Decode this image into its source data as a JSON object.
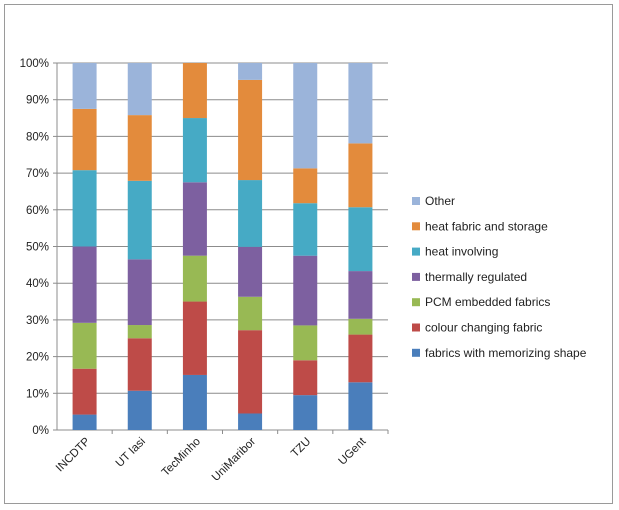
{
  "chart_data": {
    "type": "bar",
    "stacked": true,
    "percent": true,
    "title": "",
    "xlabel": "",
    "ylabel": "",
    "ylim": [
      0,
      100
    ],
    "y_ticks": [
      "0%",
      "10%",
      "20%",
      "30%",
      "40%",
      "50%",
      "60%",
      "70%",
      "80%",
      "90%",
      "100%"
    ],
    "grid": true,
    "legend_position": "right",
    "categories": [
      "INCDTP",
      "UT Iasi",
      "TecMinho",
      "UniMaribor",
      "TZU",
      "UGent"
    ],
    "series": [
      {
        "name": "fabrics with memorizing shape",
        "color": "#4a7ebb",
        "values": [
          4.2,
          10.7,
          15.0,
          4.5,
          9.5,
          13.0
        ]
      },
      {
        "name": "colour changing fabric",
        "color": "#be4b48",
        "values": [
          12.5,
          14.3,
          20.0,
          22.7,
          9.5,
          13.0
        ]
      },
      {
        "name": "PCM embedded fabrics",
        "color": "#98b954",
        "values": [
          12.5,
          3.6,
          12.5,
          9.1,
          9.5,
          4.3
        ]
      },
      {
        "name": "thermally regulated",
        "color": "#7d60a0",
        "values": [
          20.8,
          17.9,
          20.0,
          13.6,
          19.0,
          13.0
        ]
      },
      {
        "name": "heat involving",
        "color": "#46aac5",
        "values": [
          20.8,
          21.4,
          17.5,
          18.2,
          14.3,
          17.4
        ]
      },
      {
        "name": "heat fabric and storage",
        "color": "#e38b3c",
        "values": [
          16.7,
          17.9,
          15.0,
          27.3,
          9.5,
          17.4
        ]
      },
      {
        "name": "Other",
        "color": "#9bb4da",
        "values": [
          12.5,
          14.2,
          0.0,
          4.6,
          28.7,
          21.9
        ]
      }
    ],
    "legend_order": [
      "Other",
      "heat fabric and storage",
      "heat involving",
      "thermally regulated",
      "PCM embedded fabrics",
      "colour changing fabric",
      "fabrics with memorizing shape"
    ]
  }
}
